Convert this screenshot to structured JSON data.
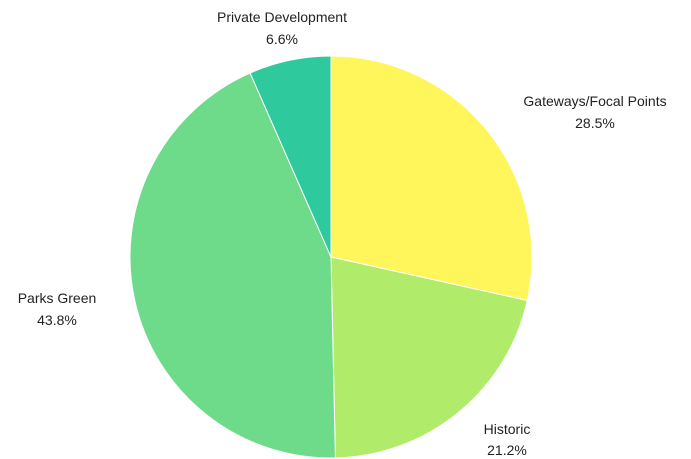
{
  "chart_data": {
    "type": "pie",
    "categories": [
      "Gateways/Focal Points",
      "Historic",
      "Parks Green",
      "Private Development"
    ],
    "values": [
      28.5,
      21.2,
      43.8,
      6.6
    ],
    "value_labels": [
      "28.5%",
      "21.2%",
      "43.8%",
      "6.6%"
    ],
    "colors": [
      "#fef65b",
      "#b0eb6a",
      "#6edb8a",
      "#2ec99c"
    ],
    "start_angle_deg": 0,
    "direction": "clockwise"
  }
}
